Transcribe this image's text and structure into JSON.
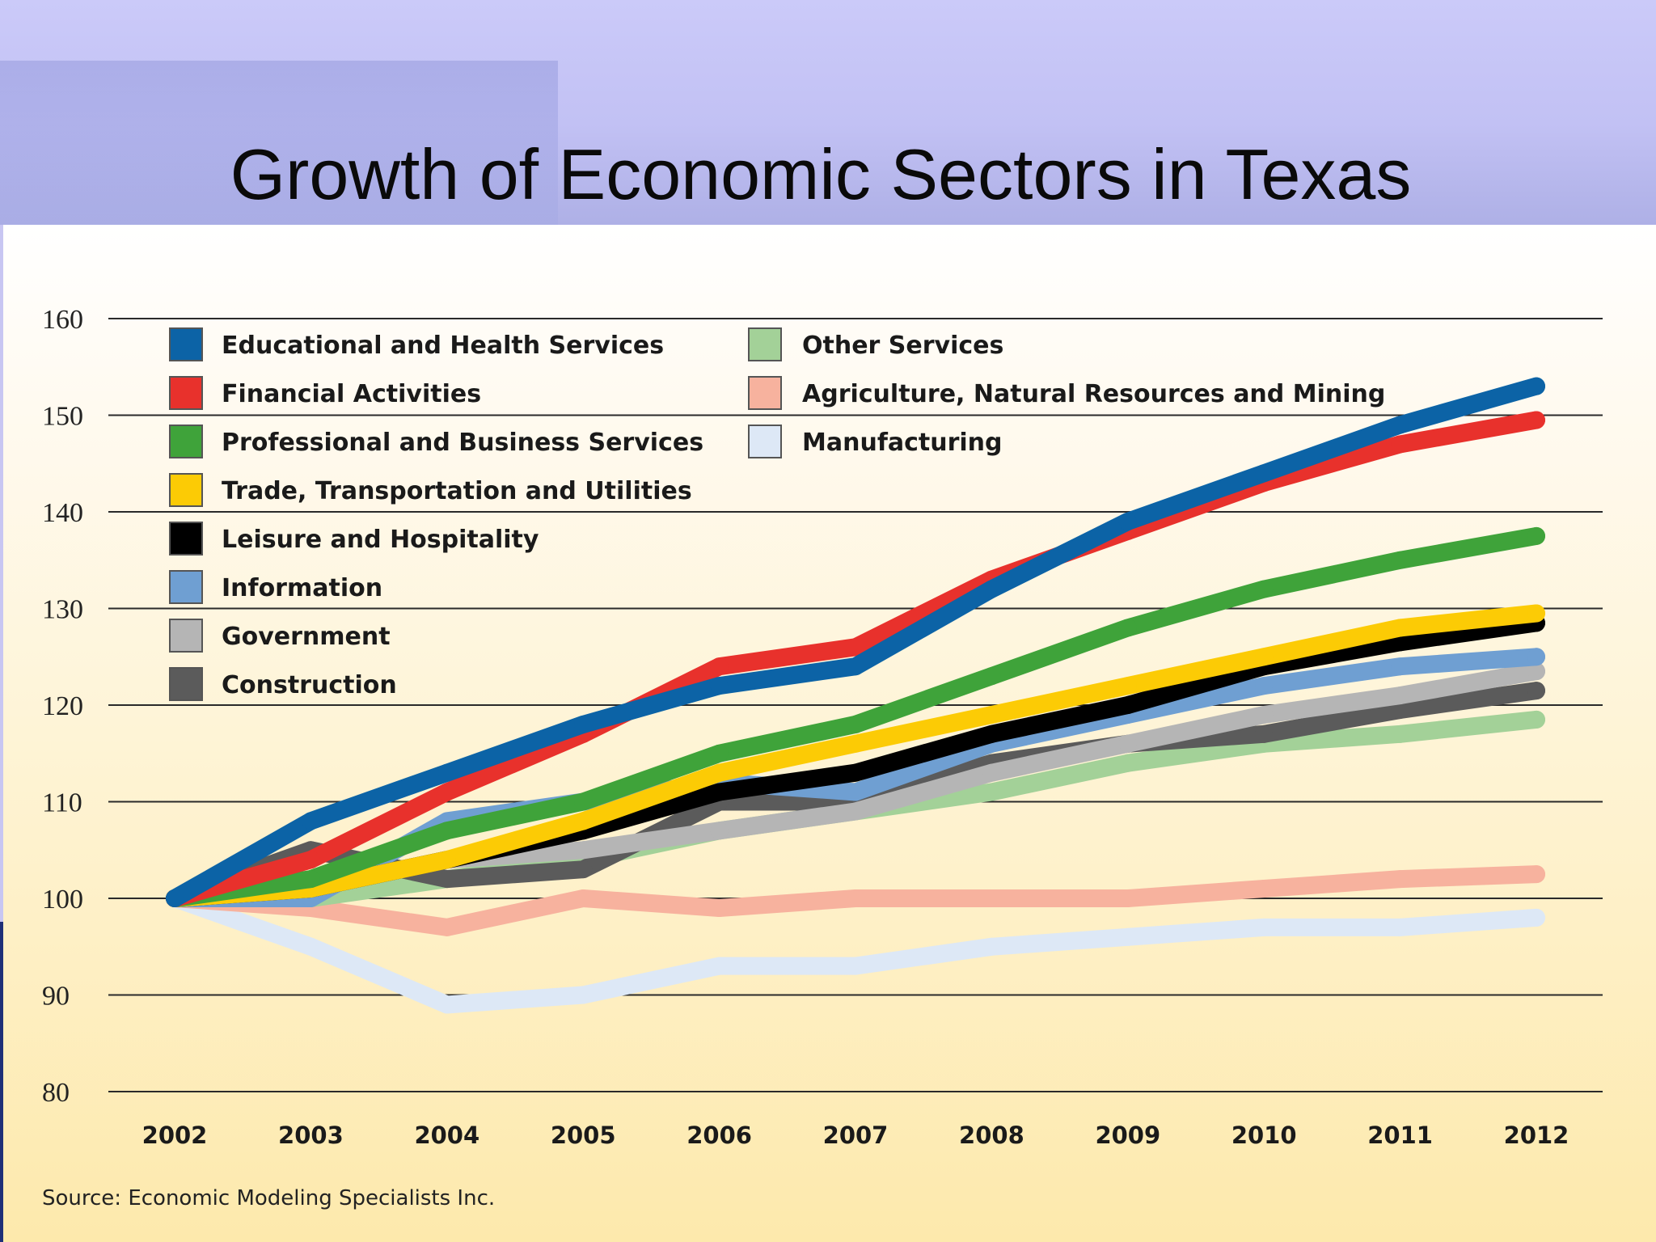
{
  "slide": {
    "title": "Growth of Economic Sectors in Texas"
  },
  "chart_data": {
    "type": "line",
    "title": "",
    "xlabel": "",
    "ylabel": "",
    "x": [
      "2002",
      "2003",
      "2004",
      "2005",
      "2006",
      "2007",
      "2008",
      "2009",
      "2010",
      "2011",
      "2012"
    ],
    "ylim": [
      80,
      160
    ],
    "yticks": [
      "80",
      "90",
      "100",
      "110",
      "120",
      "130",
      "140",
      "150",
      "160"
    ],
    "grid": "horizontal",
    "legend_position": "top-left",
    "source": "Source: Economic Modeling Specialists Inc.",
    "series": [
      {
        "name": "Manufacturing",
        "color": "#dde8f6",
        "values": [
          100,
          95,
          89,
          90,
          93,
          93,
          95,
          96,
          97,
          97,
          98
        ]
      },
      {
        "name": "Agriculture, Natural Resources and Mining",
        "color": "#f7b29e",
        "values": [
          100,
          99,
          97,
          100,
          99,
          100,
          100,
          100,
          101,
          102,
          102.5
        ]
      },
      {
        "name": "Other Services",
        "color": "#a3d198",
        "values": [
          100,
          100,
          102,
          104,
          107,
          109,
          111,
          114,
          116,
          117,
          118.5
        ]
      },
      {
        "name": "Construction",
        "color": "#5b5b5b",
        "values": [
          100,
          105,
          102,
          103,
          110,
          110,
          114,
          116,
          117,
          119.5,
          121.5
        ]
      },
      {
        "name": "Government",
        "color": "#b5b5b5",
        "values": [
          100,
          101,
          104,
          105,
          107,
          109,
          113,
          116,
          119,
          121,
          123.5
        ]
      },
      {
        "name": "Information",
        "color": "#6f9fd2",
        "values": [
          100,
          100,
          108,
          110,
          112,
          111,
          116,
          119,
          122,
          124,
          125
        ]
      },
      {
        "name": "Leisure and Hospitality",
        "color": "#000000",
        "values": [
          100,
          101,
          104,
          107,
          111,
          113,
          117,
          120,
          124,
          126.5,
          128.5
        ]
      },
      {
        "name": "Trade, Transportation and Utilities",
        "color": "#fccb05",
        "values": [
          100,
          101,
          104,
          108,
          113,
          116,
          119,
          122,
          125,
          128,
          129.5
        ]
      },
      {
        "name": "Professional and Business Services",
        "color": "#3fa33a",
        "values": [
          100,
          102,
          107,
          110,
          115,
          118,
          123,
          128,
          132,
          135,
          137.5
        ]
      },
      {
        "name": "Financial Activities",
        "color": "#e8312c",
        "values": [
          100,
          104,
          111,
          117,
          124,
          126,
          133,
          138,
          143,
          147,
          149.5
        ]
      },
      {
        "name": "Educational and Health Services",
        "color": "#0c63a6",
        "values": [
          100,
          108,
          113,
          118,
          122,
          124,
          132,
          139,
          144,
          149,
          153
        ]
      }
    ],
    "legend": [
      {
        "name": "Educational and Health Services",
        "color": "#0c63a6"
      },
      {
        "name": "Financial Activities",
        "color": "#e8312c"
      },
      {
        "name": "Professional and Business Services",
        "color": "#3fa33a"
      },
      {
        "name": "Trade, Transportation and Utilities",
        "color": "#fccb05"
      },
      {
        "name": "Leisure and Hospitality",
        "color": "#000000"
      },
      {
        "name": "Information",
        "color": "#6f9fd2"
      },
      {
        "name": "Government",
        "color": "#b5b5b5"
      },
      {
        "name": "Construction",
        "color": "#5b5b5b"
      },
      {
        "name": "Other Services",
        "color": "#a3d198"
      },
      {
        "name": "Agriculture, Natural Resources and Mining",
        "color": "#f7b29e"
      },
      {
        "name": "Manufacturing",
        "color": "#dde8f6"
      }
    ]
  }
}
